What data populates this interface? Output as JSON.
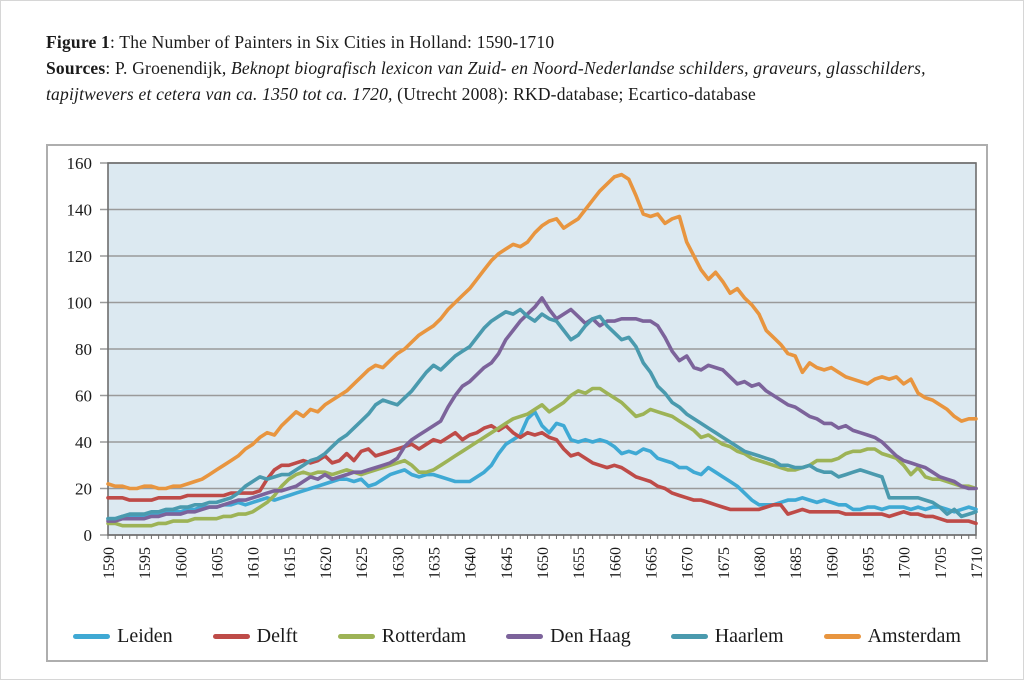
{
  "caption": {
    "figure_label": "Figure 1",
    "figure_rest": ": The Number of Painters in Six Cities in Holland: 1590-1710",
    "sources_label": "Sources",
    "sources_pre": ": P. Groenendijk, ",
    "sources_italic": "Beknopt biografisch lexicon van Zuid- en Noord-Nederlandse schilders, graveurs, glasschilders, tapijtwevers et cetera van ca. 1350 tot ca. 1720,",
    "sources_post": " (Utrecht 2008): RKD-database; Ecartico-database"
  },
  "colors": {
    "plot_background": "#dce9f1",
    "gridline": "#9a9a9a",
    "axis": "#6e6e6e",
    "chart_border": "#aeaeae"
  },
  "chart_data": {
    "type": "line",
    "title": "The Number of Painters in Six Cities in Holland: 1590-1710",
    "xlabel": "",
    "ylabel": "",
    "x_start": 1590,
    "x_end": 1710,
    "x_ticks": [
      1590,
      1595,
      1600,
      1605,
      1610,
      1615,
      1620,
      1625,
      1630,
      1635,
      1640,
      1645,
      1650,
      1655,
      1660,
      1665,
      1670,
      1675,
      1680,
      1685,
      1690,
      1695,
      1700,
      1705,
      1710
    ],
    "ylim": [
      0,
      160
    ],
    "y_ticks": [
      0,
      20,
      40,
      60,
      80,
      100,
      120,
      140,
      160
    ],
    "grid": true,
    "legend_position": "bottom",
    "series": [
      {
        "name": "Leiden",
        "color": "#3fa9d4",
        "values": [
          7,
          7,
          8,
          8,
          8,
          8,
          9,
          9,
          10,
          10,
          10,
          11,
          11,
          12,
          12,
          12,
          13,
          13,
          14,
          13,
          14,
          15,
          16,
          15,
          16,
          17,
          18,
          19,
          20,
          21,
          22,
          23,
          24,
          24,
          23,
          24,
          21,
          22,
          24,
          26,
          27,
          28,
          26,
          25,
          26,
          26,
          25,
          24,
          23,
          23,
          23,
          25,
          27,
          30,
          35,
          39,
          41,
          43,
          50,
          53,
          47,
          44,
          48,
          47,
          41,
          40,
          41,
          40,
          41,
          40,
          38,
          35,
          36,
          35,
          37,
          36,
          33,
          32,
          31,
          29,
          29,
          27,
          26,
          29,
          27,
          25,
          23,
          21,
          18,
          15,
          13,
          13,
          13,
          14,
          15,
          15,
          16,
          15,
          14,
          15,
          14,
          13,
          13,
          11,
          11,
          12,
          12,
          11,
          12,
          12,
          12,
          11,
          12,
          11,
          12,
          12,
          11,
          10,
          11,
          12,
          11
        ]
      },
      {
        "name": "Delft",
        "color": "#be4b48",
        "values": [
          16,
          16,
          16,
          15,
          15,
          15,
          15,
          16,
          16,
          16,
          16,
          17,
          17,
          17,
          17,
          17,
          17,
          18,
          18,
          18,
          18,
          19,
          24,
          28,
          30,
          30,
          31,
          32,
          31,
          32,
          34,
          31,
          32,
          35,
          32,
          36,
          37,
          34,
          35,
          36,
          37,
          38,
          39,
          37,
          39,
          41,
          40,
          42,
          44,
          41,
          43,
          44,
          46,
          47,
          45,
          47,
          44,
          42,
          44,
          43,
          44,
          42,
          41,
          37,
          34,
          35,
          33,
          31,
          30,
          29,
          30,
          29,
          27,
          25,
          24,
          23,
          21,
          20,
          18,
          17,
          16,
          15,
          15,
          14,
          13,
          12,
          11,
          11,
          11,
          11,
          11,
          12,
          13,
          13,
          9,
          10,
          11,
          10,
          10,
          10,
          10,
          10,
          9,
          9,
          9,
          9,
          9,
          9,
          8,
          9,
          10,
          9,
          9,
          8,
          8,
          7,
          6,
          6,
          6,
          6,
          5
        ]
      },
      {
        "name": "Rotterdam",
        "color": "#9db356",
        "values": [
          5,
          5,
          4,
          4,
          4,
          4,
          4,
          5,
          5,
          6,
          6,
          6,
          7,
          7,
          7,
          7,
          8,
          8,
          9,
          9,
          10,
          12,
          14,
          17,
          21,
          24,
          26,
          27,
          26,
          27,
          27,
          26,
          27,
          28,
          27,
          26,
          27,
          28,
          29,
          30,
          31,
          32,
          30,
          27,
          27,
          28,
          30,
          32,
          34,
          36,
          38,
          40,
          42,
          44,
          46,
          48,
          50,
          51,
          52,
          54,
          56,
          53,
          55,
          57,
          60,
          62,
          61,
          63,
          63,
          61,
          59,
          57,
          54,
          51,
          52,
          54,
          53,
          52,
          51,
          49,
          47,
          45,
          42,
          43,
          41,
          39,
          38,
          36,
          35,
          33,
          32,
          31,
          30,
          29,
          28,
          28,
          29,
          30,
          32,
          32,
          32,
          33,
          35,
          36,
          36,
          37,
          37,
          35,
          34,
          33,
          30,
          26,
          29,
          25,
          24,
          24,
          23,
          22,
          21,
          21,
          20
        ]
      },
      {
        "name": "Den Haag",
        "color": "#7c639b",
        "values": [
          6,
          6,
          7,
          7,
          7,
          7,
          8,
          8,
          9,
          9,
          9,
          10,
          10,
          11,
          12,
          12,
          13,
          14,
          15,
          15,
          16,
          17,
          18,
          19,
          19,
          20,
          21,
          23,
          25,
          24,
          26,
          24,
          25,
          26,
          27,
          27,
          28,
          29,
          30,
          31,
          33,
          38,
          41,
          43,
          45,
          47,
          49,
          55,
          60,
          64,
          66,
          69,
          72,
          74,
          78,
          84,
          88,
          92,
          95,
          98,
          102,
          97,
          93,
          95,
          97,
          94,
          91,
          93,
          90,
          92,
          92,
          93,
          93,
          93,
          92,
          92,
          90,
          85,
          79,
          75,
          77,
          72,
          71,
          73,
          72,
          71,
          68,
          65,
          66,
          64,
          65,
          62,
          60,
          58,
          56,
          55,
          53,
          51,
          50,
          48,
          48,
          46,
          47,
          45,
          44,
          43,
          42,
          40,
          37,
          34,
          32,
          31,
          30,
          29,
          27,
          25,
          24,
          23,
          21,
          20,
          20
        ]
      },
      {
        "name": "Haarlem",
        "color": "#4a9aae",
        "values": [
          7,
          7,
          8,
          9,
          9,
          9,
          10,
          10,
          11,
          11,
          12,
          12,
          13,
          13,
          14,
          14,
          15,
          16,
          18,
          21,
          23,
          25,
          24,
          25,
          26,
          26,
          28,
          30,
          32,
          33,
          35,
          38,
          41,
          43,
          46,
          49,
          52,
          56,
          58,
          57,
          56,
          59,
          62,
          66,
          70,
          73,
          71,
          74,
          77,
          79,
          81,
          85,
          89,
          92,
          94,
          96,
          95,
          97,
          94,
          92,
          95,
          93,
          92,
          88,
          84,
          86,
          90,
          93,
          94,
          90,
          87,
          84,
          85,
          81,
          74,
          70,
          64,
          61,
          57,
          55,
          52,
          50,
          48,
          46,
          44,
          42,
          40,
          38,
          36,
          35,
          34,
          33,
          32,
          30,
          30,
          29,
          29,
          30,
          28,
          27,
          27,
          25,
          26,
          27,
          28,
          27,
          26,
          25,
          16,
          16,
          16,
          16,
          16,
          15,
          14,
          12,
          9,
          11,
          8,
          9,
          10
        ]
      },
      {
        "name": "Amsterdam",
        "color": "#e8953f",
        "values": [
          22,
          21,
          21,
          20,
          20,
          21,
          21,
          20,
          20,
          21,
          21,
          22,
          23,
          24,
          26,
          28,
          30,
          32,
          34,
          37,
          39,
          42,
          44,
          43,
          47,
          50,
          53,
          51,
          54,
          53,
          56,
          58,
          60,
          62,
          65,
          68,
          71,
          73,
          72,
          75,
          78,
          80,
          83,
          86,
          88,
          90,
          93,
          97,
          100,
          103,
          106,
          110,
          114,
          118,
          121,
          123,
          125,
          124,
          126,
          130,
          133,
          135,
          136,
          132,
          134,
          136,
          140,
          144,
          148,
          151,
          154,
          155,
          153,
          146,
          138,
          137,
          138,
          134,
          136,
          137,
          126,
          120,
          114,
          110,
          113,
          109,
          104,
          106,
          102,
          99,
          95,
          88,
          85,
          82,
          78,
          77,
          70,
          74,
          72,
          71,
          72,
          70,
          68,
          67,
          66,
          65,
          67,
          68,
          67,
          68,
          65,
          67,
          61,
          59,
          58,
          56,
          54,
          51,
          49,
          50,
          50
        ]
      }
    ]
  }
}
